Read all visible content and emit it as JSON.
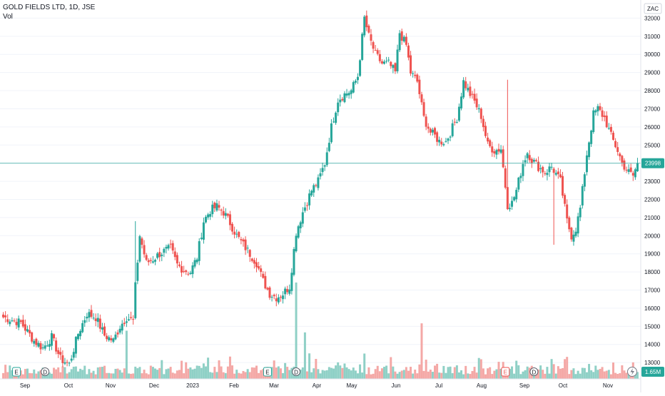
{
  "header": {
    "title": "GOLD FIELDS LTD, 1D, JSE",
    "volume_label": "Vol"
  },
  "currency": "ZAC",
  "last_price": "23998",
  "last_volume": "1.65M",
  "colors": {
    "up": "#26a69a",
    "down": "#ef5350",
    "up_volume": "#8fd0c6",
    "down_volume": "#f4a8a6",
    "grid": "#f0f3fa",
    "price_line": "#26a69a",
    "axis_text": "#131722"
  },
  "chart_data": {
    "type": "candlestick",
    "y_ticks": [
      13000,
      14000,
      15000,
      16000,
      17000,
      18000,
      19000,
      20000,
      21000,
      22000,
      23000,
      24000,
      25000,
      26000,
      27000,
      28000,
      29000,
      30000,
      31000,
      32000
    ],
    "ylim": [
      12100,
      33000
    ],
    "x_ticks": [
      "Sep",
      "Oct",
      "Nov",
      "Dec",
      "2023",
      "Feb",
      "Mar",
      "Apr",
      "May",
      "Jun",
      "Jul",
      "Aug",
      "Sep",
      "Oct",
      "Nov"
    ],
    "keyframes": [
      [
        0,
        15500
      ],
      [
        8,
        15200
      ],
      [
        14,
        14200
      ],
      [
        18,
        13800
      ],
      [
        22,
        14400
      ],
      [
        26,
        13200
      ],
      [
        30,
        12900
      ],
      [
        34,
        14600
      ],
      [
        38,
        15700
      ],
      [
        42,
        15500
      ],
      [
        46,
        14500
      ],
      [
        50,
        14200
      ],
      [
        53,
        15000
      ],
      [
        56,
        15500
      ],
      [
        59,
        15300
      ],
      [
        60,
        17200
      ],
      [
        62,
        20000
      ],
      [
        65,
        18500
      ],
      [
        68,
        18700
      ],
      [
        71,
        19000
      ],
      [
        74,
        19200
      ],
      [
        76,
        19300
      ],
      [
        79,
        18400
      ],
      [
        82,
        18100
      ],
      [
        85,
        18000
      ],
      [
        88,
        18800
      ],
      [
        91,
        20800
      ],
      [
        94,
        21400
      ],
      [
        97,
        21600
      ],
      [
        100,
        21300
      ],
      [
        103,
        20700
      ],
      [
        106,
        20000
      ],
      [
        109,
        19500
      ],
      [
        112,
        19000
      ],
      [
        115,
        18500
      ],
      [
        118,
        17500
      ],
      [
        121,
        16800
      ],
      [
        124,
        16600
      ],
      [
        127,
        16800
      ],
      [
        130,
        17200
      ],
      [
        133,
        20200
      ],
      [
        136,
        21300
      ],
      [
        140,
        22500
      ],
      [
        143,
        23000
      ],
      [
        146,
        24000
      ],
      [
        149,
        26000
      ],
      [
        152,
        27500
      ],
      [
        155,
        27800
      ],
      [
        158,
        28000
      ],
      [
        161,
        28800
      ],
      [
        164,
        32000
      ],
      [
        166,
        31000
      ],
      [
        169,
        30000
      ],
      [
        172,
        29500
      ],
      [
        175,
        29500
      ],
      [
        178,
        29000
      ],
      [
        180,
        31200
      ],
      [
        183,
        30500
      ],
      [
        185,
        29000
      ],
      [
        188,
        28500
      ],
      [
        191,
        26500
      ],
      [
        194,
        25700
      ],
      [
        196,
        25500
      ],
      [
        198,
        25200
      ],
      [
        201,
        25200
      ],
      [
        203,
        25700
      ],
      [
        206,
        26500
      ],
      [
        209,
        28500
      ],
      [
        212,
        27800
      ],
      [
        214,
        27400
      ],
      [
        217,
        26600
      ],
      [
        220,
        25000
      ],
      [
        223,
        24700
      ],
      [
        226,
        24800
      ],
      [
        229,
        21700
      ],
      [
        231,
        21800
      ],
      [
        233,
        22500
      ],
      [
        236,
        24000
      ],
      [
        238,
        24600
      ],
      [
        240,
        24200
      ],
      [
        243,
        23800
      ],
      [
        246,
        23500
      ],
      [
        249,
        23800
      ],
      [
        251,
        23400
      ],
      [
        253,
        23000
      ],
      [
        256,
        20800
      ],
      [
        258,
        20000
      ],
      [
        260,
        20400
      ],
      [
        262,
        21500
      ],
      [
        265,
        24500
      ],
      [
        268,
        26700
      ],
      [
        270,
        27000
      ],
      [
        273,
        26500
      ],
      [
        276,
        25500
      ],
      [
        279,
        24700
      ],
      [
        281,
        24000
      ],
      [
        284,
        23500
      ],
      [
        286,
        23300
      ],
      [
        288,
        23998
      ]
    ],
    "volume_ylim": [
      0,
      18000000
    ],
    "volume_spikes": [
      [
        133,
        17000000
      ],
      [
        56,
        8500000
      ],
      [
        137,
        8200000
      ],
      [
        190,
        9800000
      ],
      [
        227,
        3000000
      ],
      [
        249,
        3500000
      ],
      [
        139,
        4500000
      ],
      [
        81,
        3200000
      ]
    ],
    "price_spikes": [
      [
        229,
        28600
      ],
      [
        60,
        20800
      ],
      [
        250,
        19500
      ]
    ],
    "events": [
      {
        "label": "E",
        "type": "earnings",
        "position": 6
      },
      {
        "label": "D",
        "type": "dividend",
        "position": 19
      },
      {
        "label": "E",
        "type": "earnings",
        "position": 120
      },
      {
        "label": "D",
        "type": "dividend",
        "position": 133
      },
      {
        "label": "E",
        "type": "earnings",
        "position": 228
      },
      {
        "label": "D",
        "type": "dividend",
        "position": 241
      }
    ]
  }
}
